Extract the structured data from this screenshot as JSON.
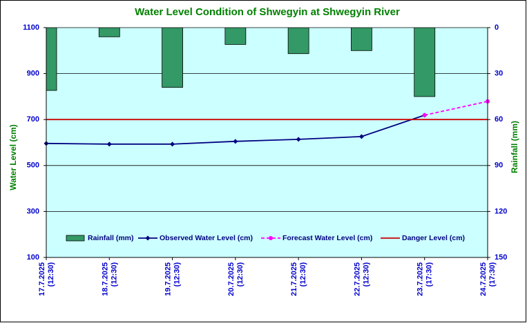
{
  "chart_data": {
    "type": "combo",
    "title": "Water Level Condition of Shwegyin at Shwegyin River",
    "ylabel": "Water Level (cm)",
    "y2label": "Rainfall (mm)",
    "categories": [
      [
        "17.7.2025",
        "(12:30)"
      ],
      [
        "18.7.2025",
        "(12:30)"
      ],
      [
        "19.7.2025",
        "(12:30)"
      ],
      [
        "20.7.2025",
        "(12:30)"
      ],
      [
        "21.7.2025",
        "(12:30)"
      ],
      [
        "22.7.2025",
        "(12:30)"
      ],
      [
        "23.7.2025",
        "(17:30)"
      ],
      [
        "24.7.2025",
        "(17:30)"
      ]
    ],
    "ylim": [
      100,
      1100
    ],
    "yticks": [
      100,
      300,
      500,
      700,
      900,
      1100
    ],
    "y2lim": [
      0,
      150
    ],
    "y2ticks": [
      0,
      30,
      60,
      90,
      120,
      150
    ],
    "y2_inverted": true,
    "grid": true,
    "series": [
      {
        "name": "Rainfall (mm)",
        "type": "bar",
        "axis": "y2",
        "color": "#339966",
        "values": [
          41,
          6,
          39,
          11,
          17,
          15,
          45,
          null
        ]
      },
      {
        "name": "Observed Water Level (cm)",
        "type": "line",
        "color": "#000080",
        "marker": "diamond",
        "values": [
          596,
          593,
          593,
          605,
          614,
          626,
          719,
          null
        ]
      },
      {
        "name": "Forecast Water Level (cm)",
        "type": "line",
        "color": "#ff00ff",
        "dashed": true,
        "marker": "circle",
        "values": [
          null,
          null,
          null,
          null,
          null,
          null,
          719,
          779
        ]
      },
      {
        "name": "Danger Level (cm)",
        "type": "line",
        "color": "#cc0000",
        "values": [
          700,
          700,
          700,
          700,
          700,
          700,
          700,
          700
        ]
      }
    ]
  }
}
